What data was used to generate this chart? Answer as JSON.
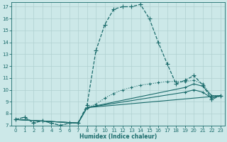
{
  "xlabel": "Humidex (Indice chaleur)",
  "xlim": [
    -0.5,
    23.5
  ],
  "ylim": [
    7,
    17.4
  ],
  "yticks": [
    7,
    8,
    9,
    10,
    11,
    12,
    13,
    14,
    15,
    16,
    17
  ],
  "xticks": [
    0,
    1,
    2,
    3,
    4,
    5,
    6,
    7,
    8,
    9,
    10,
    11,
    12,
    13,
    14,
    15,
    16,
    17,
    18,
    19,
    20,
    21,
    22,
    23
  ],
  "background_color": "#cce8e8",
  "line_color": "#1a6b6b",
  "grid_color": "#b0d0d0",
  "lines": [
    {
      "x": [
        0,
        1,
        2,
        3,
        4,
        5,
        6,
        7,
        8,
        9,
        10,
        11,
        12,
        13,
        14,
        15,
        16,
        17,
        18,
        19,
        20,
        21,
        22,
        23
      ],
      "y": [
        7.5,
        7.7,
        7.2,
        7.4,
        7.2,
        7.0,
        7.2,
        7.2,
        8.7,
        13.3,
        15.5,
        16.8,
        17.0,
        17.0,
        17.2,
        16.0,
        14.0,
        12.2,
        10.5,
        10.8,
        11.2,
        10.4,
        9.2,
        9.5
      ],
      "style": "dashed",
      "linewidth": 0.9,
      "marker": "+",
      "markersize": 4
    },
    {
      "x": [
        0,
        1,
        2,
        3,
        4,
        5,
        6,
        7,
        8,
        9,
        10,
        11,
        12,
        13,
        14,
        15,
        16,
        17,
        18,
        19,
        20,
        21,
        22,
        23
      ],
      "y": [
        7.5,
        7.7,
        7.2,
        7.4,
        7.2,
        7.0,
        7.2,
        7.2,
        8.5,
        8.8,
        9.3,
        9.7,
        10.0,
        10.2,
        10.4,
        10.5,
        10.6,
        10.7,
        10.7,
        10.7,
        10.8,
        10.5,
        9.5,
        9.5
      ],
      "style": "dotted",
      "linewidth": 0.8,
      "marker": "+",
      "markersize": 3
    },
    {
      "x": [
        0,
        7,
        8,
        23
      ],
      "y": [
        7.5,
        7.2,
        8.5,
        9.5
      ],
      "style": "solid",
      "linewidth": 0.8,
      "marker": "+",
      "markersize": 3
    },
    {
      "x": [
        0,
        7,
        8,
        19,
        20,
        21,
        22,
        23
      ],
      "y": [
        7.5,
        7.2,
        8.5,
        9.8,
        10.0,
        9.8,
        9.3,
        9.5
      ],
      "style": "solid",
      "linewidth": 0.8,
      "marker": "+",
      "markersize": 3
    },
    {
      "x": [
        0,
        7,
        8,
        19,
        20,
        21,
        22,
        23
      ],
      "y": [
        7.5,
        7.2,
        8.5,
        10.2,
        10.5,
        10.3,
        9.5,
        9.5
      ],
      "style": "solid",
      "linewidth": 0.8,
      "marker": "+",
      "markersize": 3
    }
  ]
}
